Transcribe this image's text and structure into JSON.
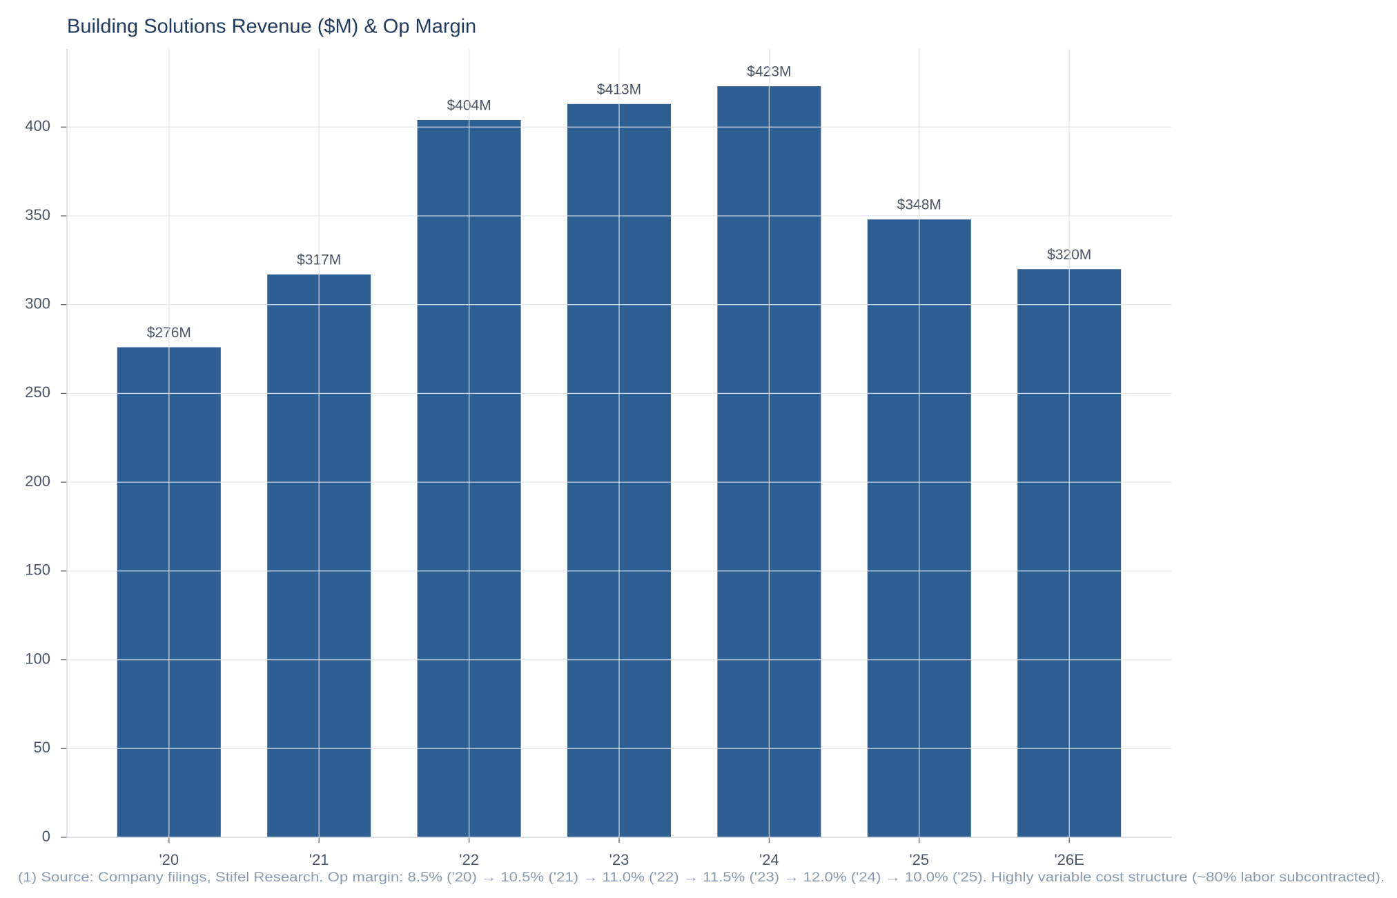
{
  "chart_data": {
    "type": "bar",
    "title": "Building Solutions Revenue ($M) & Op Margin",
    "categories": [
      "'20",
      "'21",
      "'22",
      "'23",
      "'24",
      "'25",
      "'26E"
    ],
    "values": [
      276,
      317,
      404,
      413,
      423,
      348,
      320
    ],
    "value_labels": [
      "$276M",
      "$317M",
      "$404M",
      "$413M",
      "$423M",
      "$348M",
      "$320M"
    ],
    "color": "#2e5f93",
    "ylim": [
      0,
      444
    ],
    "yticks": [
      0,
      50,
      100,
      150,
      200,
      250,
      300,
      350,
      400
    ],
    "grid": true,
    "footnote": "(1) Source: Company filings, Stifel Research. Op margin: 8.5% ('20) → 10.5% ('21) → 11.0% ('22) → 11.5% ('23) → 12.0% ('24) → 10.0% ('25). Highly variable cost structure (~80% labor subcontracted)."
  }
}
